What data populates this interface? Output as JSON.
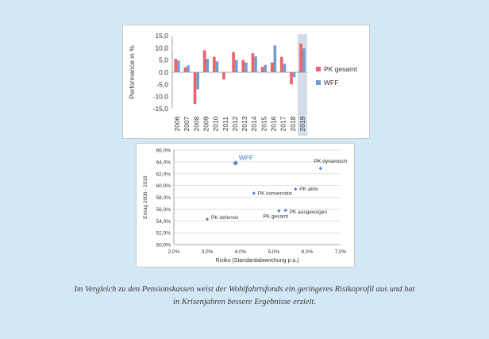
{
  "colors": {
    "pk_series": "#f0626a",
    "wff_series": "#6f9fd1",
    "highlight_band": "#d4dcea",
    "scatter_point": "#4f86c6",
    "wff_label": "#3d7cc9",
    "grid": "#d9d9d9",
    "axis_text": "#333333"
  },
  "chart_data": [
    {
      "type": "bar",
      "ylabel": "Performance in %",
      "ylim": [
        -15,
        15
      ],
      "yticks": [
        "15,0",
        "10,0",
        "5,0",
        "0,0",
        "-5,0",
        "-10,0",
        "-15,0"
      ],
      "categories": [
        "2006",
        "2007",
        "2008",
        "2009",
        "2010",
        "2011",
        "2012",
        "2013",
        "2014",
        "2015",
        "2016",
        "2017",
        "2018",
        "2019"
      ],
      "highlight_category": "2019",
      "series": [
        {
          "name": "PK gesamt",
          "values": [
            5.5,
            2.0,
            -13.0,
            9.0,
            6.3,
            -3.0,
            8.3,
            5.0,
            7.8,
            2.2,
            4.0,
            6.3,
            -5.0,
            11.8
          ]
        },
        {
          "name": "WFF",
          "values": [
            4.8,
            2.8,
            -7.0,
            5.5,
            4.5,
            0.0,
            5.0,
            4.0,
            6.5,
            3.0,
            11.0,
            3.5,
            -2.0,
            9.8
          ]
        }
      ],
      "legend": "right"
    },
    {
      "type": "scatter",
      "xlabel": "Risiko (Standardabweichung p.a.)",
      "ylabel": "Ertrag 2006 - 2019",
      "xlim": [
        2.0,
        7.0
      ],
      "ylim": [
        50.0,
        66.0
      ],
      "xticks": [
        "2,0%",
        "3,0%",
        "4,0%",
        "5,0%",
        "6,0%",
        "7,0%"
      ],
      "yticks": [
        "66,0%",
        "64,0%",
        "62,0%",
        "60,0%",
        "58,0%",
        "56,0%",
        "54,0%",
        "52,0%",
        "50,0%"
      ],
      "grid": true,
      "points": [
        {
          "label": "WFF",
          "x": 3.85,
          "y": 63.8
        },
        {
          "label": "PK dynamisch",
          "x": 6.4,
          "y": 62.9
        },
        {
          "label": "PK konservativ",
          "x": 4.4,
          "y": 58.7
        },
        {
          "label": "PK aktiv",
          "x": 5.65,
          "y": 59.4
        },
        {
          "label": "PK defensiv",
          "x": 3.0,
          "y": 54.3
        },
        {
          "label": "PK gesamt",
          "x": 5.15,
          "y": 55.7
        },
        {
          "label": "PK ausgewogen",
          "x": 5.35,
          "y": 55.8
        }
      ]
    }
  ],
  "caption": {
    "line1": "Im Vergleich zu den Pensionskassen weist der Wohlfahrtsfonds ein geringeres Risikoprofil aus und hat",
    "line2": "in Krisenjahren bessere Ergebnisse erzielt."
  }
}
